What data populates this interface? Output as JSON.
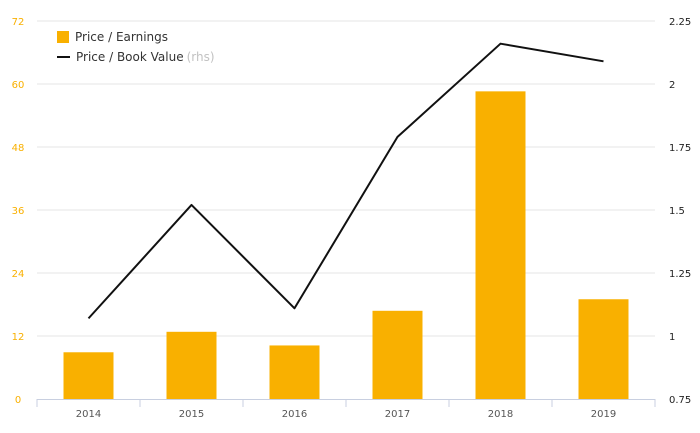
{
  "chart_data": {
    "type": "bar",
    "categories": [
      "2014",
      "2015",
      "2016",
      "2017",
      "2018",
      "2019"
    ],
    "series": [
      {
        "name": "Price / Earnings",
        "type": "bar",
        "axis": "left",
        "color": "#f9b000",
        "values": [
          8.9,
          12.8,
          10.2,
          16.8,
          58.6,
          19.0
        ]
      },
      {
        "name": "Price / Book Value",
        "name_suffix": "(rhs)",
        "type": "line",
        "axis": "right",
        "color": "#111111",
        "values": [
          1.07,
          1.52,
          1.11,
          1.79,
          2.16,
          2.09
        ]
      }
    ],
    "y_left": {
      "ticks": [
        "0",
        "12",
        "24",
        "36",
        "48",
        "60",
        "72"
      ],
      "min": 0,
      "max": 72,
      "color": "#f9b000"
    },
    "y_right": {
      "ticks": [
        "0.75",
        "1",
        "1.25",
        "1.5",
        "1.75",
        "2",
        "2.25"
      ],
      "min": 0.75,
      "max": 2.25,
      "color": "#222222"
    },
    "grid": true,
    "legend": "top-left"
  }
}
